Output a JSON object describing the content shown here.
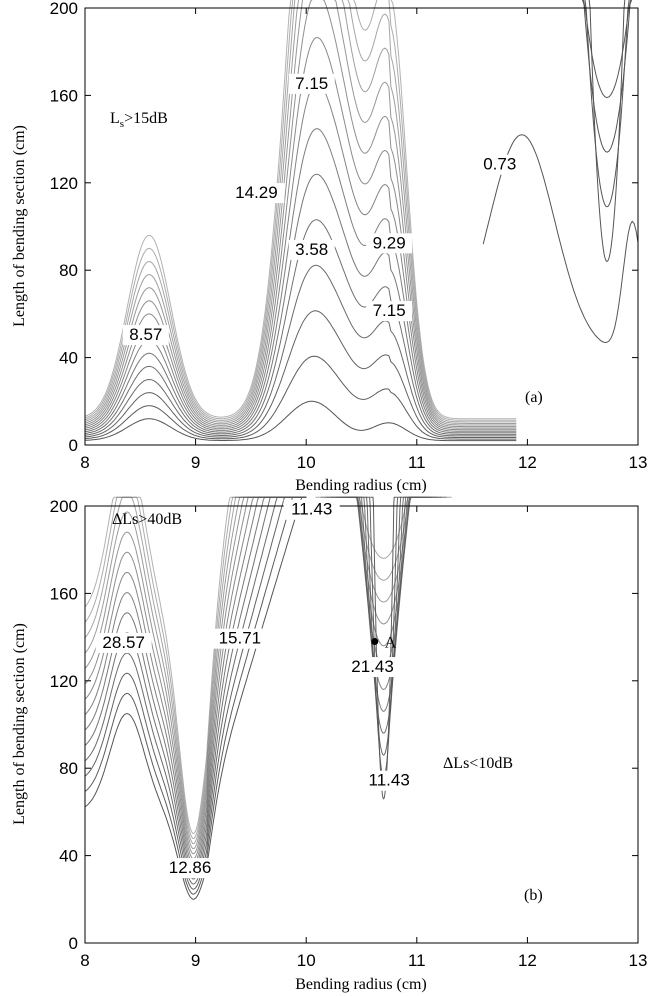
{
  "chart_data": [
    {
      "type": "contour",
      "panel_label": "(a)",
      "xlabel": "Bending radius (cm)",
      "ylabel": "Length of bending section (cm)",
      "xlim": [
        8,
        13
      ],
      "ylim": [
        0,
        200
      ],
      "x_ticks": [
        "8",
        "9",
        "10",
        "11",
        "12",
        "13"
      ],
      "y_ticks": [
        "0",
        "40",
        "80",
        "120",
        "160",
        "200"
      ],
      "region_note_prefix": "L",
      "region_note_sub": "s",
      "region_note_suffix": ">15dB",
      "contour_labels": [
        {
          "text": "8.57",
          "x": 8.55,
          "y": 48
        },
        {
          "text": "14.29",
          "x": 9.55,
          "y": 113
        },
        {
          "text": "7.15",
          "x": 10.05,
          "y": 163
        },
        {
          "text": "3.58",
          "x": 10.05,
          "y": 87
        },
        {
          "text": "9.29",
          "x": 10.75,
          "y": 90
        },
        {
          "text": "7.15",
          "x": 10.75,
          "y": 59
        },
        {
          "text": "0.73",
          "x": 11.75,
          "y": 126
        }
      ]
    },
    {
      "type": "contour",
      "panel_label": "(b)",
      "xlabel": "Bending radius (cm)",
      "ylabel": "Length of bending section (cm)",
      "xlim": [
        8,
        13
      ],
      "ylim": [
        0,
        200
      ],
      "x_ticks": [
        "8",
        "9",
        "10",
        "11",
        "12",
        "13"
      ],
      "y_ticks": [
        "0",
        "40",
        "80",
        "120",
        "160",
        "200"
      ],
      "region_notes": [
        "ΔLs>40dB",
        "ΔLs<10dB"
      ],
      "point_label": "A",
      "point": {
        "x": 10.62,
        "y": 138
      },
      "contour_labels": [
        {
          "text": "28.57",
          "x": 8.35,
          "y": 135
        },
        {
          "text": "12.86",
          "x": 8.95,
          "y": 32
        },
        {
          "text": "15.71",
          "x": 9.4,
          "y": 137
        },
        {
          "text": "11.43",
          "x": 10.05,
          "y": 196
        },
        {
          "text": "21.43",
          "x": 10.6,
          "y": 124
        },
        {
          "text": "11.43",
          "x": 10.75,
          "y": 72
        }
      ]
    }
  ]
}
